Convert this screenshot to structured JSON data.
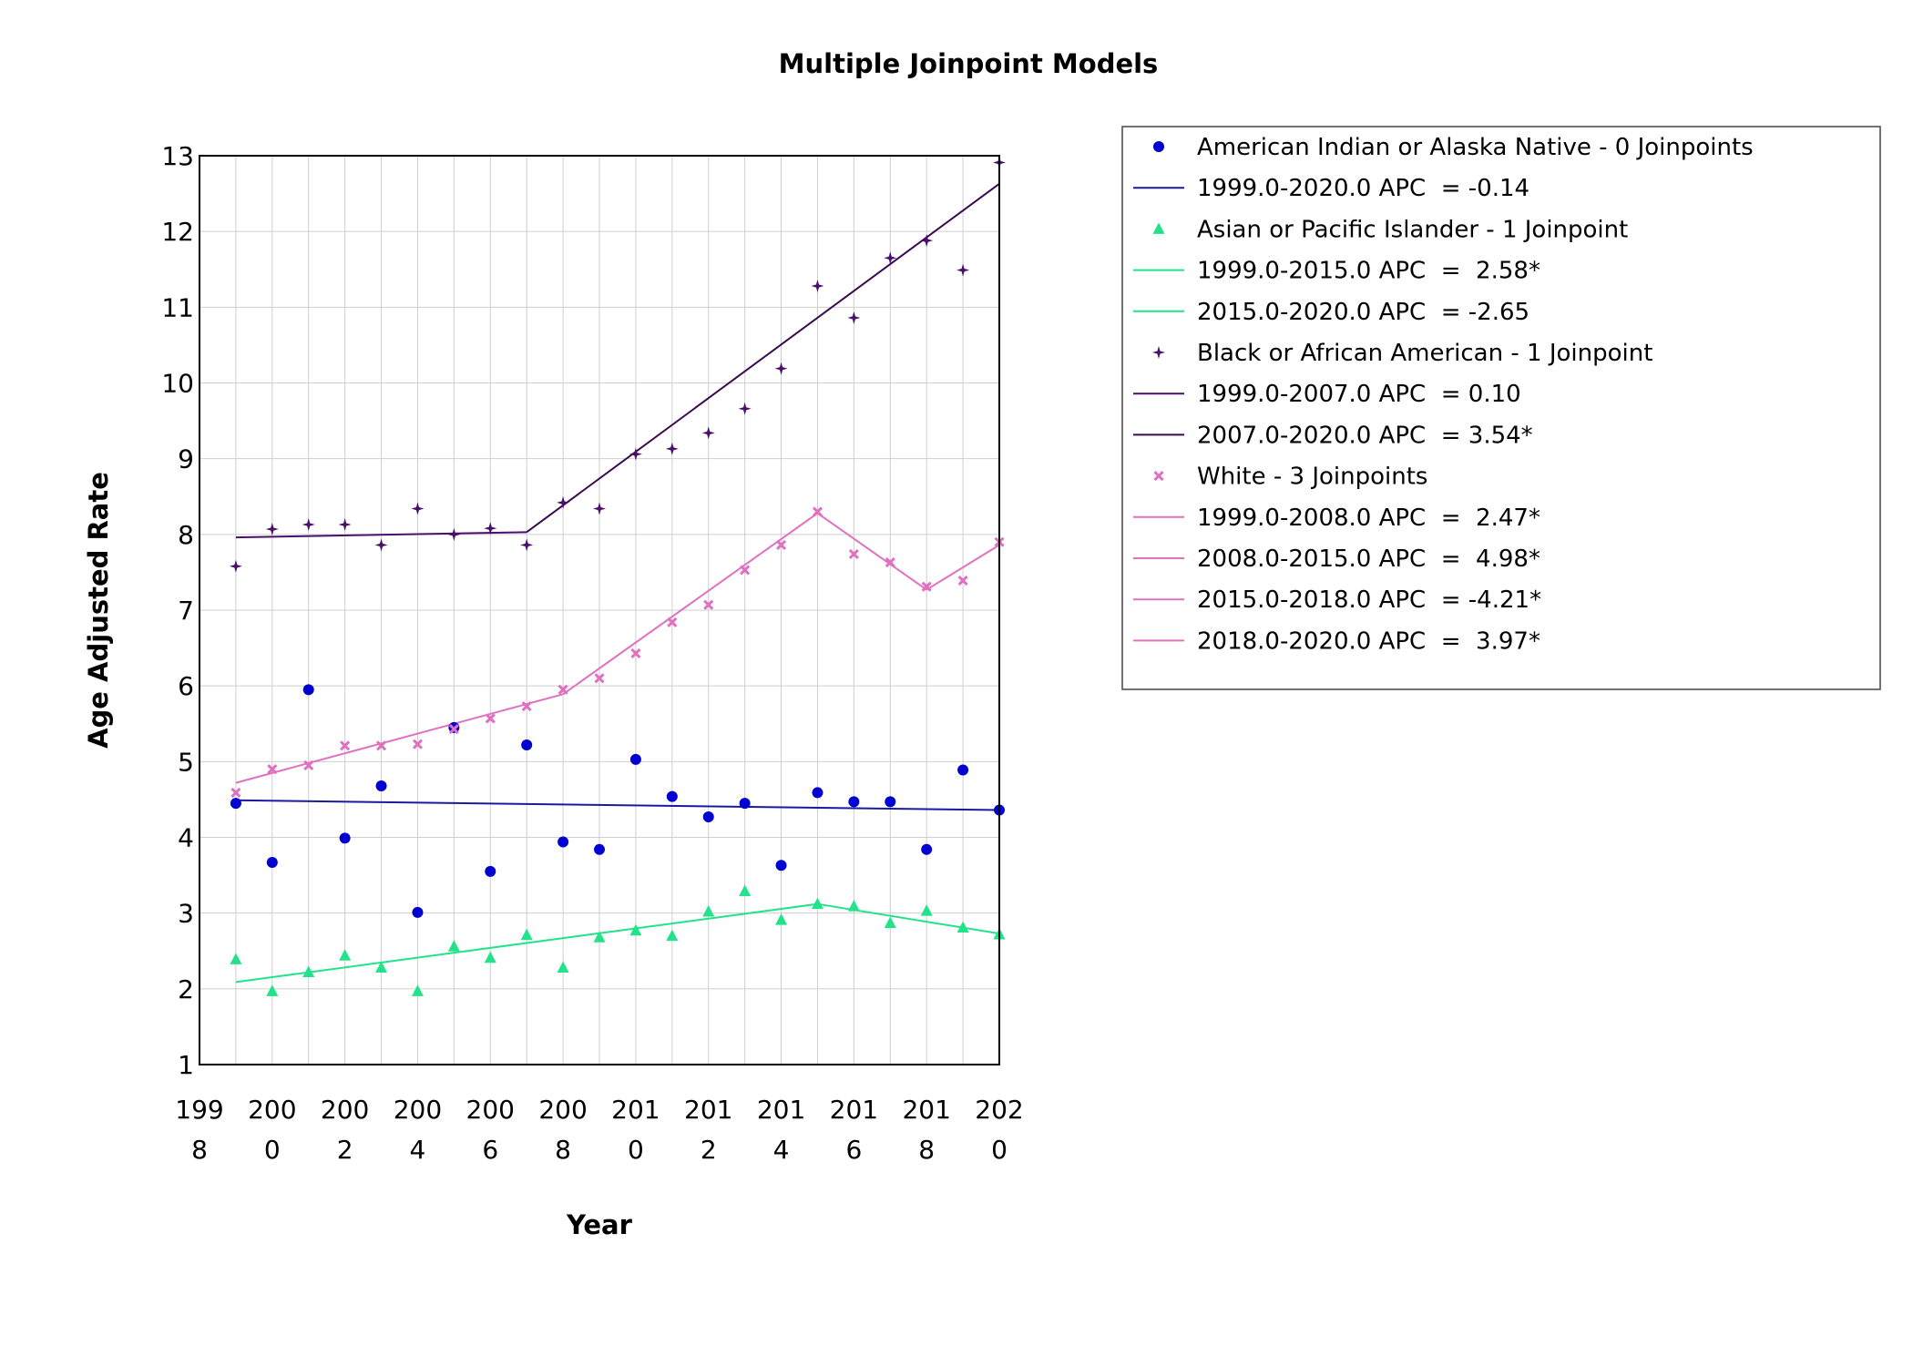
{
  "chart_data": {
    "type": "scatter",
    "title": "Multiple Joinpoint Models",
    "xlabel": "Year",
    "ylabel": "Age Adjusted Rate",
    "xlim": [
      1998,
      2020
    ],
    "ylim": [
      1,
      13
    ],
    "x_ticks": [
      {
        "value": 1998,
        "l1": "199",
        "l2": "8"
      },
      {
        "value": 2000,
        "l1": "200",
        "l2": "0"
      },
      {
        "value": 2002,
        "l1": "200",
        "l2": "2"
      },
      {
        "value": 2004,
        "l1": "200",
        "l2": "4"
      },
      {
        "value": 2006,
        "l1": "200",
        "l2": "6"
      },
      {
        "value": 2008,
        "l1": "200",
        "l2": "8"
      },
      {
        "value": 2010,
        "l1": "201",
        "l2": "0"
      },
      {
        "value": 2012,
        "l1": "201",
        "l2": "2"
      },
      {
        "value": 2014,
        "l1": "201",
        "l2": "4"
      },
      {
        "value": 2016,
        "l1": "201",
        "l2": "6"
      },
      {
        "value": 2018,
        "l1": "201",
        "l2": "8"
      },
      {
        "value": 2020,
        "l1": "202",
        "l2": "0"
      }
    ],
    "y_ticks": [
      1,
      2,
      3,
      4,
      5,
      6,
      7,
      8,
      9,
      10,
      11,
      12,
      13
    ],
    "grid": true,
    "legend_position": "right",
    "series": [
      {
        "name": "American Indian or Alaska Native - 0 Joinpoints",
        "color": "#0000d0",
        "marker": "circle",
        "x": [
          1999,
          2000,
          2001,
          2002,
          2003,
          2004,
          2005,
          2006,
          2007,
          2008,
          2009,
          2010,
          2011,
          2012,
          2013,
          2014,
          2015,
          2016,
          2017,
          2018,
          2019,
          2020
        ],
        "values": [
          4.45,
          3.67,
          5.95,
          3.99,
          4.68,
          3.01,
          5.45,
          3.55,
          5.22,
          3.94,
          3.84,
          5.03,
          4.54,
          4.27,
          4.45,
          3.63,
          4.59,
          4.47,
          4.47,
          3.84,
          4.89,
          4.36
        ],
        "fit": [
          [
            1999,
            4.49
          ],
          [
            2020,
            4.36
          ]
        ],
        "segments": [
          {
            "label": "1999.0-2020.0 APC  = -0.14",
            "color": "#1a1aa0"
          }
        ]
      },
      {
        "name": "Asian or Pacific Islander - 1 Joinpoint",
        "color": "#22e38a",
        "marker": "triangle",
        "x": [
          1999,
          2000,
          2001,
          2002,
          2003,
          2004,
          2005,
          2006,
          2007,
          2008,
          2009,
          2010,
          2011,
          2012,
          2013,
          2014,
          2015,
          2016,
          2017,
          2018,
          2019,
          2020
        ],
        "values": [
          2.39,
          1.97,
          2.22,
          2.44,
          2.28,
          1.97,
          2.56,
          2.41,
          2.71,
          2.28,
          2.68,
          2.77,
          2.7,
          3.02,
          3.29,
          2.91,
          3.12,
          3.09,
          2.87,
          3.03,
          2.81,
          2.72
        ],
        "fit": [
          [
            1999,
            2.09
          ],
          [
            2015,
            3.12
          ],
          [
            2020,
            2.73
          ]
        ],
        "segments": [
          {
            "label": "1999.0-2015.0 APC  =  2.58*",
            "color": "#22e38a"
          },
          {
            "label": "2015.0-2020.0 APC  = -2.65",
            "color": "#22e38a"
          }
        ]
      },
      {
        "name": "Black or African American - 1 Joinpoint",
        "color": "#4a0f6b",
        "marker": "star",
        "x": [
          1999,
          2000,
          2001,
          2002,
          2003,
          2004,
          2005,
          2006,
          2007,
          2008,
          2009,
          2010,
          2011,
          2012,
          2013,
          2014,
          2015,
          2016,
          2017,
          2018,
          2019,
          2020
        ],
        "values": [
          7.58,
          8.07,
          8.13,
          8.13,
          7.86,
          8.34,
          8.0,
          8.08,
          7.86,
          8.42,
          8.34,
          9.06,
          9.13,
          9.34,
          9.66,
          10.19,
          11.28,
          10.86,
          11.65,
          11.88,
          11.49,
          12.91
        ],
        "fit": [
          [
            1999,
            7.96
          ],
          [
            2007,
            8.03
          ],
          [
            2020,
            12.63
          ]
        ],
        "segments": [
          {
            "label": "1999.0-2007.0 APC  = 0.10",
            "color": "#4a0f6b"
          },
          {
            "label": "2007.0-2020.0 APC  = 3.54*",
            "color": "#3a0a4f"
          }
        ]
      },
      {
        "name": "White - 3 Joinpoints",
        "color": "#e070c0",
        "marker": "x",
        "x": [
          1999,
          2000,
          2001,
          2002,
          2003,
          2004,
          2005,
          2006,
          2007,
          2008,
          2009,
          2010,
          2011,
          2012,
          2013,
          2014,
          2015,
          2016,
          2017,
          2018,
          2019,
          2020
        ],
        "values": [
          4.59,
          4.9,
          4.95,
          5.21,
          5.21,
          5.23,
          5.43,
          5.57,
          5.73,
          5.95,
          6.1,
          6.43,
          6.84,
          7.07,
          7.53,
          7.86,
          8.3,
          7.74,
          7.63,
          7.31,
          7.39,
          7.9
        ],
        "fit": [
          [
            1999,
            4.72
          ],
          [
            2008,
            5.89
          ],
          [
            2015,
            8.28
          ],
          [
            2018,
            7.27
          ],
          [
            2020,
            7.86
          ]
        ],
        "segments": [
          {
            "label": "1999.0-2008.0 APC  =  2.47*",
            "color": "#e070c0"
          },
          {
            "label": "2008.0-2015.0 APC  =  4.98*",
            "color": "#e070c0"
          },
          {
            "label": "2015.0-2018.0 APC  = -4.21*",
            "color": "#e070c0"
          },
          {
            "label": "2018.0-2020.0 APC  =  3.97*",
            "color": "#e070c0"
          }
        ]
      }
    ]
  }
}
